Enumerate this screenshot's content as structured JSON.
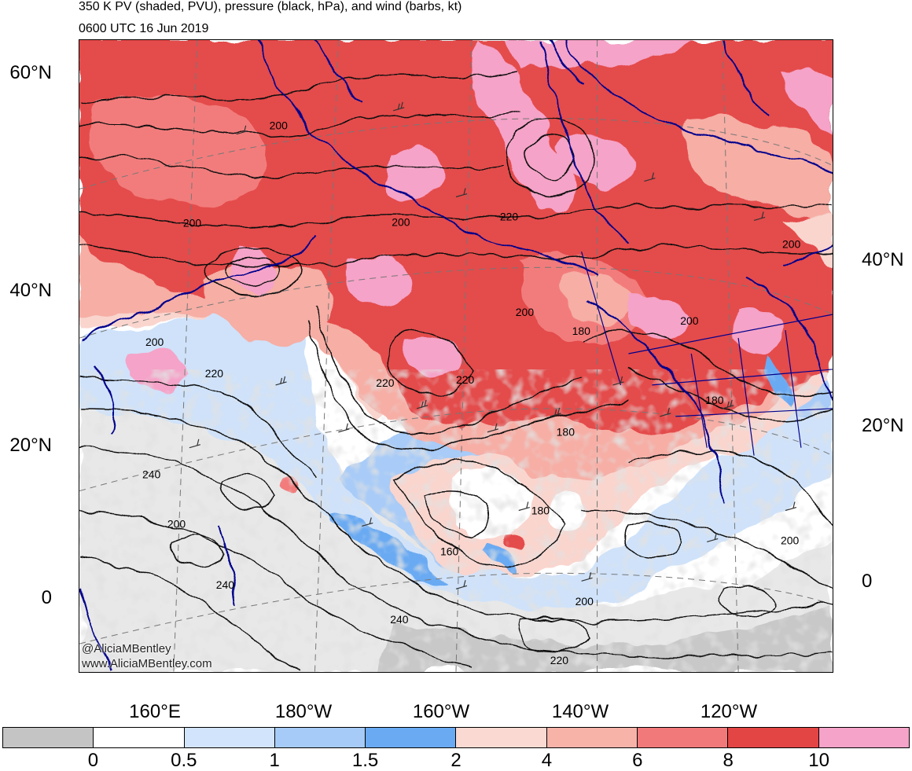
{
  "title_line1": "350 K PV (shaded, PVU), pressure (black, hPa), and wind (barbs, kt)",
  "title_line2": "0600 UTC 16 Jun 2019",
  "credit": {
    "handle": "@AliciaMBentley",
    "website": "www.AliciaMBentley.com"
  },
  "lat_labels_left": [
    "60°N",
    "40°N",
    "20°N",
    "0"
  ],
  "lat_labels_right": [
    "40°N",
    "20°N",
    "0"
  ],
  "lon_labels": [
    "160°E",
    "180°W",
    "160°W",
    "140°W",
    "120°W"
  ],
  "contour_labels": [
    "200",
    "200",
    "200",
    "220",
    "200",
    "220",
    "200",
    "180",
    "200",
    "180",
    "220",
    "200",
    "220",
    "180",
    "240",
    "200",
    "180",
    "160",
    "240",
    "240",
    "200",
    "220",
    "200"
  ],
  "colorbar": {
    "labels": [
      "0",
      "0.5",
      "1",
      "1.5",
      "2",
      "4",
      "6",
      "8",
      "10"
    ],
    "colors": [
      "#c4c4c4",
      "#ffffff",
      "#d2e4fb",
      "#a6cbf8",
      "#6aaaf2",
      "#fbd9d3",
      "#f8b3a9",
      "#f27979",
      "#e34545",
      "#f5a3c8"
    ]
  },
  "colors": {
    "coastline": "#00008b",
    "contour": "#000000",
    "graticule": "#777777"
  }
}
